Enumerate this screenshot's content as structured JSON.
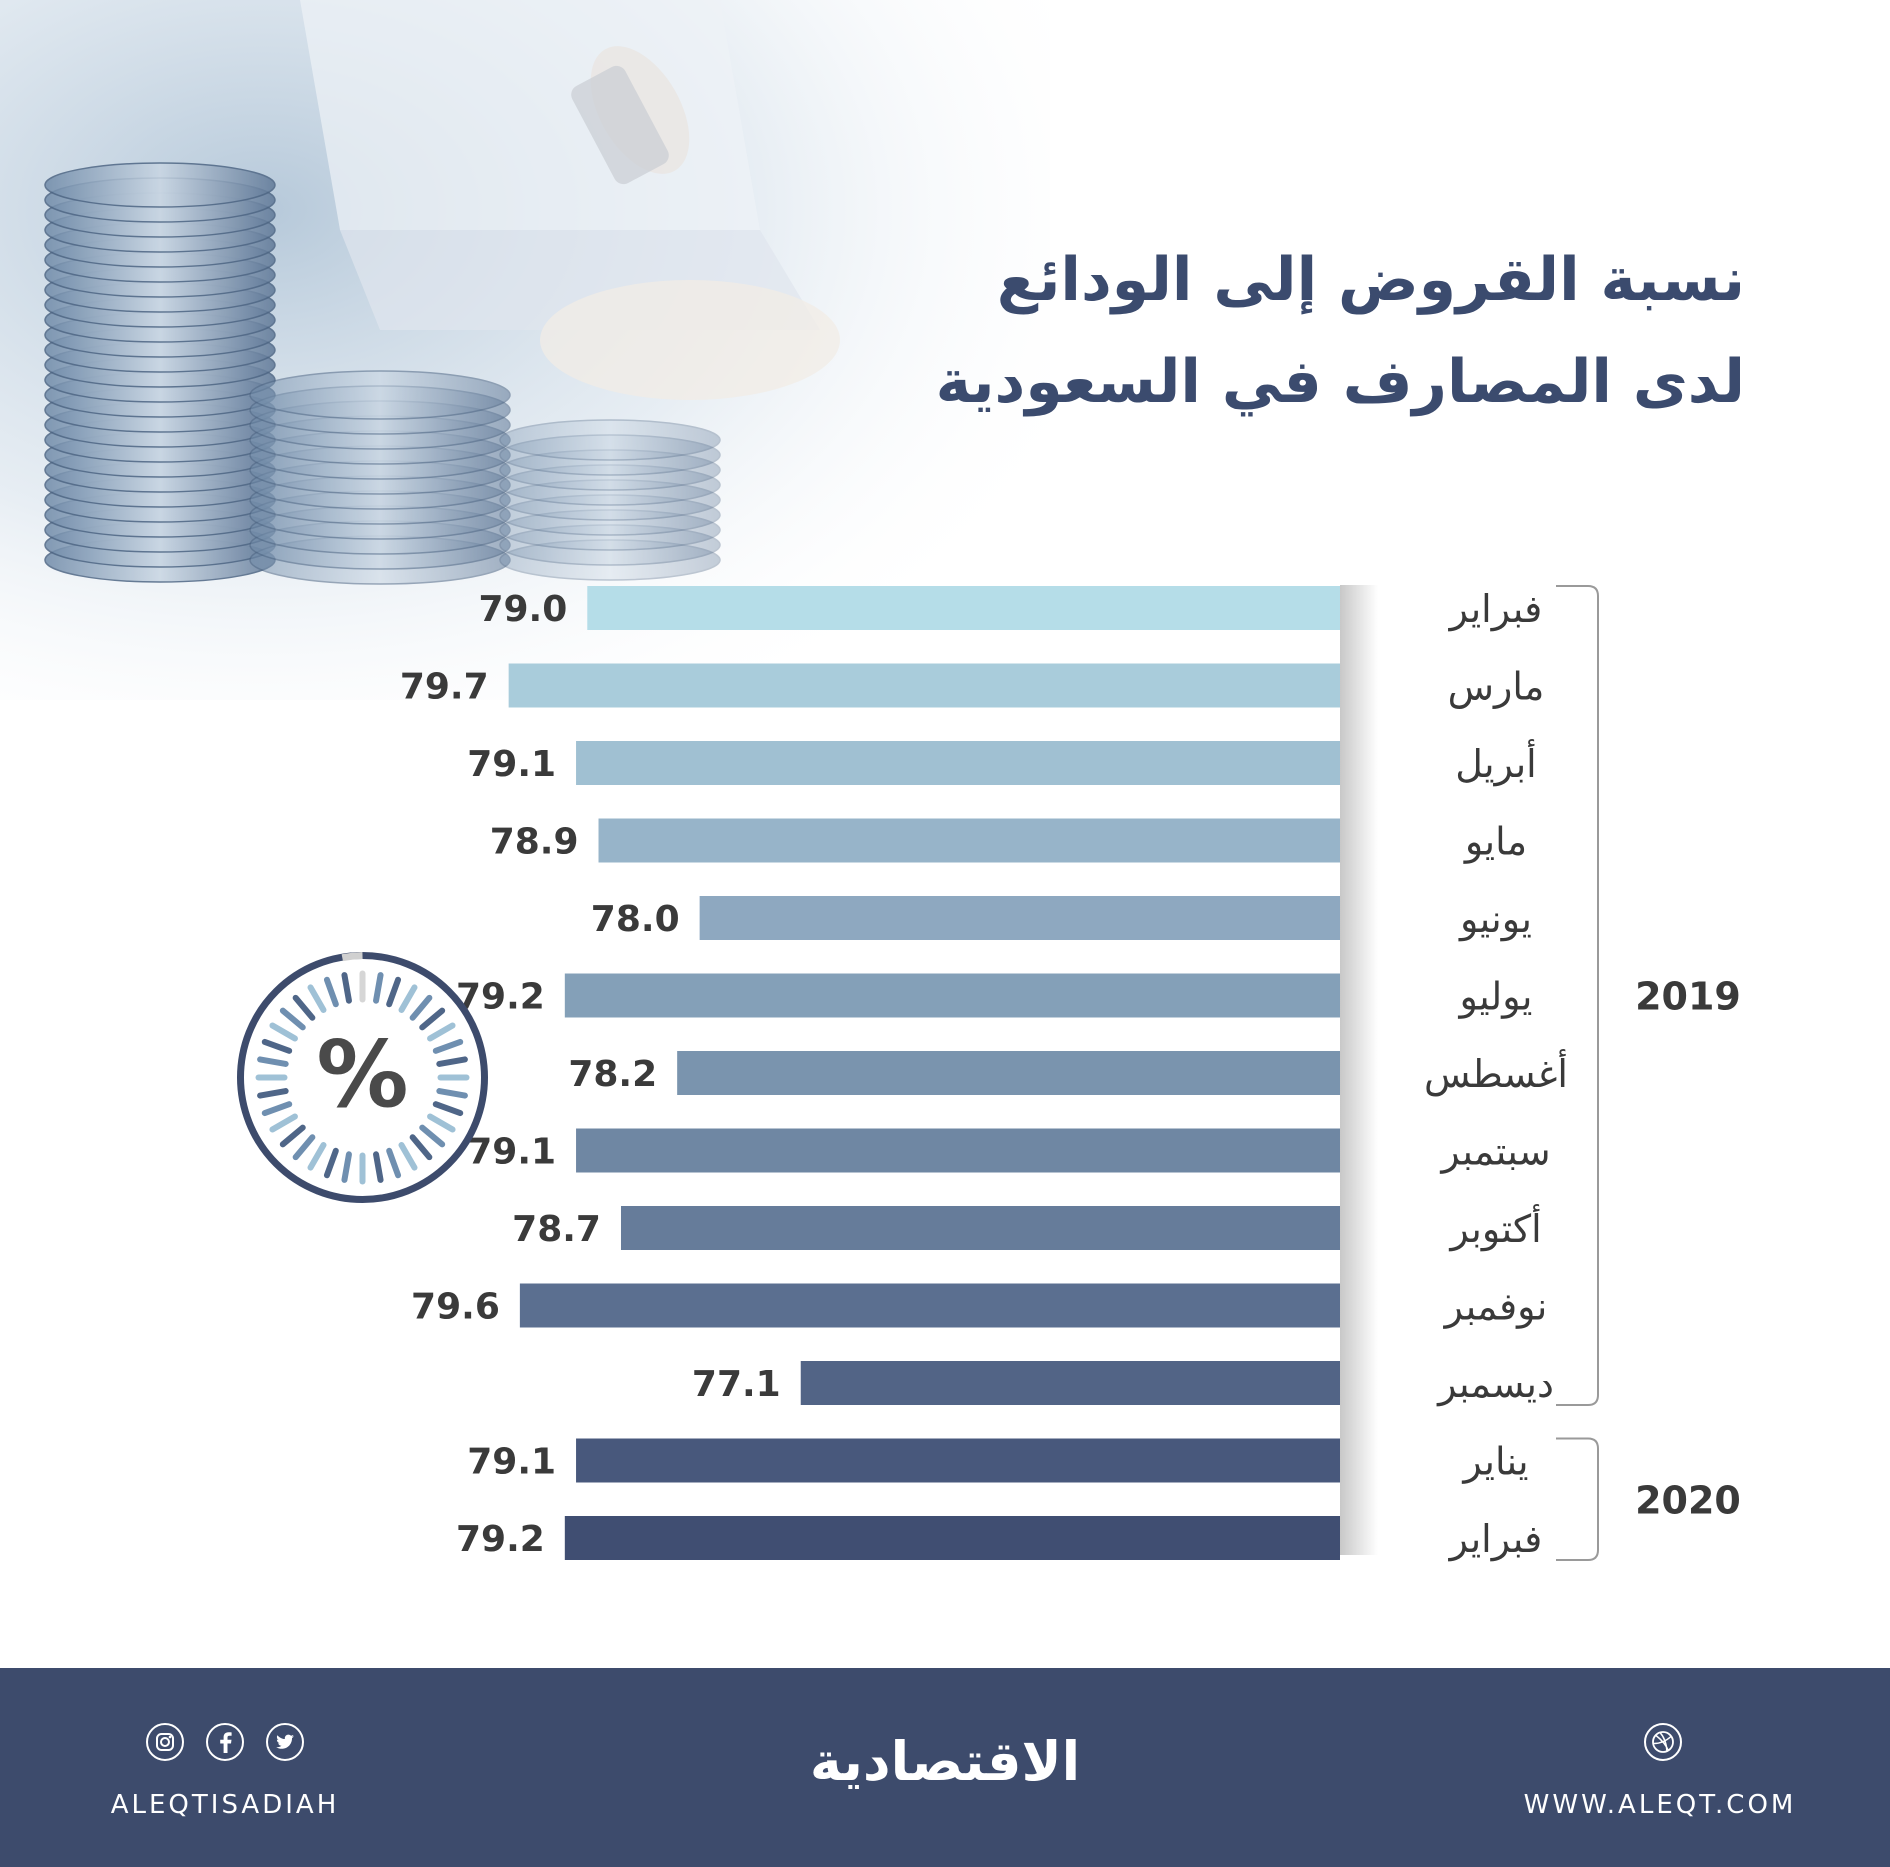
{
  "title": {
    "line1": "نسبة القروض إلى الودائع",
    "line2": "لدى المصارف في السعودية"
  },
  "gauge": {
    "symbol": "%"
  },
  "chart_data": {
    "type": "bar",
    "orientation": "horizontal",
    "categories": [
      "فبراير",
      "مارس",
      "أبريل",
      "مايو",
      "يونيو",
      "يوليو",
      "أغسطس",
      "سبتمبر",
      "أكتوبر",
      "نوفمبر",
      "ديسمبر",
      "يناير",
      "فبراير"
    ],
    "values": [
      79.0,
      79.7,
      79.1,
      78.9,
      78.0,
      79.2,
      78.2,
      79.1,
      78.7,
      79.6,
      77.1,
      79.1,
      79.2
    ],
    "value_labels": [
      "79.0",
      "79.7",
      "79.1",
      "78.9",
      "78.0",
      "79.2",
      "78.2",
      "79.1",
      "78.7",
      "79.6",
      "77.1",
      "79.1",
      "79.2"
    ],
    "groups": [
      {
        "label": "2019",
        "start": 0,
        "end": 10
      },
      {
        "label": "2020",
        "start": 11,
        "end": 12
      }
    ],
    "xlim": [
      72.3,
      80.4
    ],
    "colors": [
      "#b5dde8",
      "#a9ccdb",
      "#a0c0d2",
      "#97b4c9",
      "#8ea8c0",
      "#84a0b8",
      "#7a94ae",
      "#6f87a3",
      "#667c9a",
      "#5b6f90",
      "#526486",
      "#48587c",
      "#404e72"
    ],
    "grid": false,
    "legend": "none"
  },
  "footer": {
    "brand": "الاقتصادية",
    "handle": "ALEQTISADIAH",
    "website": "WWW.ALEQT.COM",
    "icons": [
      "instagram-icon",
      "facebook-icon",
      "twitter-icon",
      "dribbble-icon"
    ]
  }
}
